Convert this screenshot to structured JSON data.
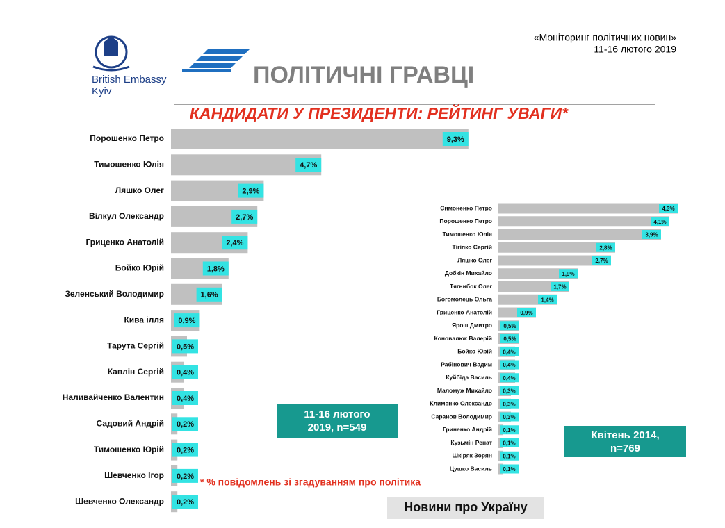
{
  "header": {
    "embassy": "British Embassy",
    "city": "Kyiv",
    "section": "ПОЛІТИЧНІ ГРАВЦІ",
    "report": "«Моніторинг політичних новин»",
    "period": "11-16 лютого 2019"
  },
  "title": "КАНДИДАТИ У ПРЕЗИДЕНТИ: РЕЙТИНГ УВАГИ*",
  "note": "* % повідомлень зі згадуванням про політика",
  "footer": "Новини про Україну",
  "chart_data": [
    {
      "type": "hbar",
      "annotation": "11-16 лютого 2019, n=549",
      "color": "#c0c0c0",
      "label_color": "#33e3e3",
      "categories": [
        "Порошенко Петро",
        "Тимошенко Юлія",
        "Ляшко Олег",
        "Вілкул Олександр",
        "Гриценко Анатолій",
        "Бойко Юрій",
        "Зеленський Володимир",
        "Кива ілля",
        "Тарута Сергій",
        "Каплін Сергій",
        "Наливайченко Валентин",
        "Садовий Андрій",
        "Тимошенко Юрій",
        "Шевченко Ігор",
        "Шевченко Олександр"
      ],
      "values": [
        9.3,
        4.7,
        2.9,
        2.7,
        2.4,
        1.8,
        1.6,
        0.9,
        0.5,
        0.4,
        0.4,
        0.2,
        0.2,
        0.2,
        0.2
      ],
      "value_labels": [
        "9,3%",
        "4,7%",
        "2,9%",
        "2,7%",
        "2,4%",
        "1,8%",
        "1,6%",
        "0,9%",
        "0,5%",
        "0,4%",
        "0,4%",
        "0,2%",
        "0,2%",
        "0,2%",
        "0,2%"
      ]
    },
    {
      "type": "hbar",
      "annotation": "Квітень 2014, n=769",
      "color": "#c0c0c0",
      "label_color": "#33e3e3",
      "categories": [
        "Симоненко Петро",
        "Порошенко Петро",
        "Тимошенко Юлія",
        "Тігіпко Сергій",
        "Ляшко Олег",
        "Добкін Михайло",
        "Тягнибок Олег",
        "Богомолець Ольга",
        "Гриценко Анатолій",
        "Ярош Дмитро",
        "Коновалюк Валерій",
        "Бойко Юрій",
        "Рабінович Вадим",
        "Куйбіда Василь",
        "Маломуж Михайло",
        "Клименко Олександр",
        "Саранов Володимир",
        "Гриненко Андрій",
        "Кузьмін Ренат",
        "Шкіряк Зорян",
        "Цушко Василь"
      ],
      "values": [
        4.3,
        4.1,
        3.9,
        2.8,
        2.7,
        1.9,
        1.7,
        1.4,
        0.9,
        0.5,
        0.5,
        0.4,
        0.4,
        0.4,
        0.3,
        0.3,
        0.3,
        0.1,
        0.1,
        0.1,
        0.1
      ],
      "value_labels": [
        "4,3%",
        "4,1%",
        "3,9%",
        "2,8%",
        "2,7%",
        "1,9%",
        "1,7%",
        "1,4%",
        "0,9%",
        "0,5%",
        "0,5%",
        "0,4%",
        "0,4%",
        "0,4%",
        "0,3%",
        "0,3%",
        "0,3%",
        "0,1%",
        "0,1%",
        "0,1%",
        "0,1%"
      ]
    }
  ]
}
